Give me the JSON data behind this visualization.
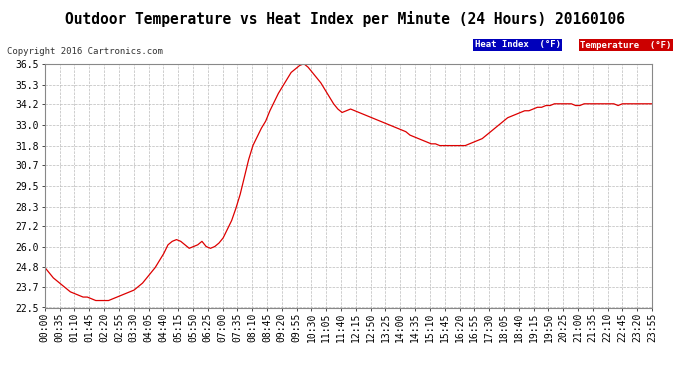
{
  "title": "Outdoor Temperature vs Heat Index per Minute (24 Hours) 20160106",
  "copyright": "Copyright 2016 Cartronics.com",
  "legend_items": [
    {
      "label": "Heat Index  (°F)",
      "bg": "#0000bb",
      "fg": "#ffffff"
    },
    {
      "label": "Temperature  (°F)",
      "bg": "#cc0000",
      "fg": "#ffffff"
    }
  ],
  "ylim": [
    22.5,
    36.5
  ],
  "yticks": [
    22.5,
    23.7,
    24.8,
    26.0,
    27.2,
    28.3,
    29.5,
    30.7,
    31.8,
    33.0,
    34.2,
    35.3,
    36.5
  ],
  "background_color": "#ffffff",
  "grid_color": "#bbbbbb",
  "line_color": "#dd0000",
  "xtick_labels": [
    "00:00",
    "00:35",
    "01:10",
    "01:45",
    "02:20",
    "02:55",
    "03:30",
    "04:05",
    "04:40",
    "05:15",
    "05:50",
    "06:25",
    "07:00",
    "07:35",
    "08:10",
    "08:45",
    "09:20",
    "09:55",
    "10:30",
    "11:05",
    "11:40",
    "12:15",
    "12:50",
    "13:25",
    "14:00",
    "14:35",
    "15:10",
    "15:45",
    "16:20",
    "16:55",
    "17:30",
    "18:05",
    "18:40",
    "19:15",
    "19:50",
    "20:25",
    "21:00",
    "21:35",
    "22:10",
    "22:45",
    "23:20",
    "23:55"
  ],
  "data_y": [
    24.8,
    24.5,
    24.2,
    24.0,
    23.8,
    23.6,
    23.4,
    23.3,
    23.2,
    23.1,
    23.1,
    23.0,
    22.9,
    22.9,
    22.9,
    22.9,
    23.0,
    23.1,
    23.2,
    23.3,
    23.4,
    23.5,
    23.7,
    23.9,
    24.2,
    24.5,
    24.8,
    25.2,
    25.6,
    26.1,
    26.3,
    26.4,
    26.3,
    26.1,
    25.9,
    26.0,
    26.1,
    26.3,
    26.0,
    25.9,
    26.0,
    26.2,
    26.5,
    27.0,
    27.5,
    28.2,
    29.0,
    30.0,
    31.0,
    31.8,
    32.3,
    32.8,
    33.2,
    33.8,
    34.3,
    34.8,
    35.2,
    35.6,
    36.0,
    36.2,
    36.4,
    36.5,
    36.3,
    36.0,
    35.7,
    35.4,
    35.0,
    34.6,
    34.2,
    33.9,
    33.7,
    33.8,
    33.9,
    33.8,
    33.7,
    33.6,
    33.5,
    33.4,
    33.3,
    33.2,
    33.1,
    33.0,
    32.9,
    32.8,
    32.7,
    32.6,
    32.4,
    32.3,
    32.2,
    32.1,
    32.0,
    31.9,
    31.9,
    31.8,
    31.8,
    31.8,
    31.8,
    31.8,
    31.8,
    31.8,
    31.9,
    32.0,
    32.1,
    32.2,
    32.4,
    32.6,
    32.8,
    33.0,
    33.2,
    33.4,
    33.5,
    33.6,
    33.7,
    33.8,
    33.8,
    33.9,
    34.0,
    34.0,
    34.1,
    34.1,
    34.2,
    34.2,
    34.2,
    34.2,
    34.2,
    34.1,
    34.1,
    34.2,
    34.2,
    34.2,
    34.2,
    34.2,
    34.2,
    34.2,
    34.2,
    34.1,
    34.2,
    34.2,
    34.2,
    34.2,
    34.2,
    34.2,
    34.2,
    34.2
  ]
}
